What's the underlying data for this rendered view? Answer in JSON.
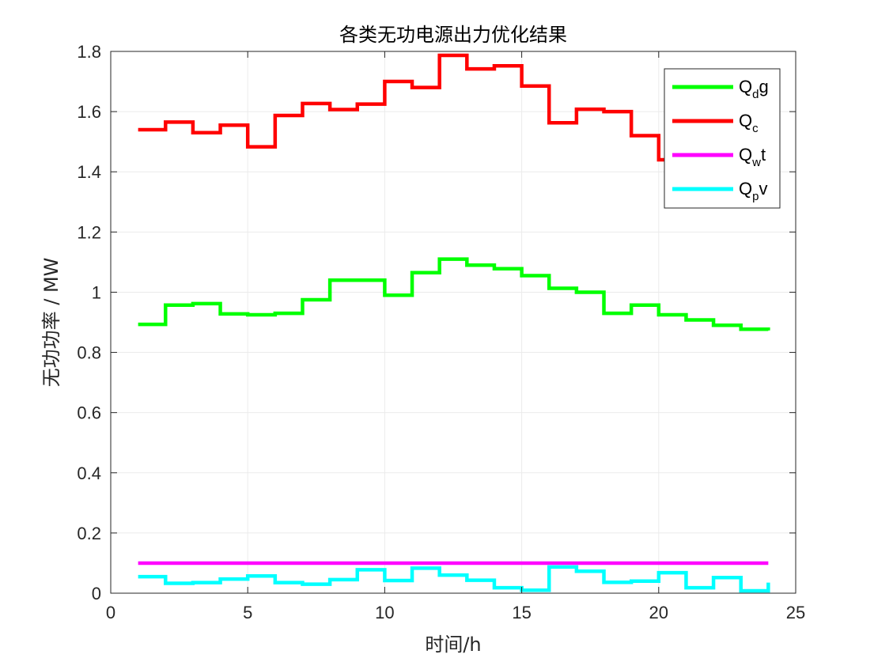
{
  "chart_data": {
    "type": "line",
    "step": true,
    "title": "各类无功电源出力优化结果",
    "xlabel": "时间/h",
    "ylabel": "无功功率 / MW",
    "xlim": [
      0,
      25
    ],
    "ylim": [
      0,
      1.8
    ],
    "xticks": [
      0,
      5,
      10,
      15,
      20,
      25
    ],
    "xtick_labels": [
      "0",
      "5",
      "10",
      "15",
      "20",
      "25"
    ],
    "yticks": [
      0,
      0.2,
      0.4,
      0.6,
      0.8,
      1,
      1.2,
      1.4,
      1.6,
      1.8
    ],
    "ytick_labels": [
      "0",
      "0.2",
      "0.4",
      "0.6",
      "0.8",
      "1",
      "1.2",
      "1.4",
      "1.6",
      "1.8"
    ],
    "grid": true,
    "legend_position": "top-right",
    "x": [
      1,
      2,
      3,
      4,
      5,
      6,
      7,
      8,
      9,
      10,
      11,
      12,
      13,
      14,
      15,
      16,
      17,
      18,
      19,
      20,
      21,
      22,
      23,
      24
    ],
    "series": [
      {
        "name_main": "Q",
        "name_sub": "d",
        "name_tail": "g",
        "color": "#00ff00",
        "values": [
          0.893,
          0.957,
          0.962,
          0.928,
          0.925,
          0.93,
          0.975,
          1.04,
          1.04,
          0.99,
          1.065,
          1.11,
          1.09,
          1.078,
          1.055,
          1.013,
          1.0,
          0.93,
          0.957,
          0.925,
          0.908,
          0.89,
          0.877,
          0.873
        ]
      },
      {
        "name_main": "Q",
        "name_sub": "c",
        "name_tail": "",
        "color": "#ff0000",
        "values": [
          1.54,
          1.565,
          1.53,
          1.555,
          1.483,
          1.587,
          1.627,
          1.607,
          1.625,
          1.7,
          1.68,
          1.787,
          1.742,
          1.752,
          1.685,
          1.563,
          1.608,
          1.6,
          1.52,
          1.44,
          1.44,
          1.44,
          1.44,
          1.44
        ]
      },
      {
        "name_main": "Q",
        "name_sub": "w",
        "name_tail": "t",
        "color": "#ff00ff",
        "values": [
          0.1,
          0.1,
          0.1,
          0.1,
          0.1,
          0.1,
          0.1,
          0.1,
          0.1,
          0.1,
          0.1,
          0.1,
          0.1,
          0.1,
          0.1,
          0.1,
          0.1,
          0.1,
          0.1,
          0.1,
          0.1,
          0.1,
          0.1,
          0.1
        ]
      },
      {
        "name_main": "Q",
        "name_sub": "p",
        "name_tail": "v",
        "color": "#00ffff",
        "values": [
          0.055,
          0.033,
          0.035,
          0.047,
          0.057,
          0.035,
          0.03,
          0.045,
          0.078,
          0.042,
          0.083,
          0.06,
          0.043,
          0.018,
          0.01,
          0.087,
          0.073,
          0.036,
          0.04,
          0.068,
          0.018,
          0.052,
          0.008,
          0.035
        ]
      }
    ]
  }
}
